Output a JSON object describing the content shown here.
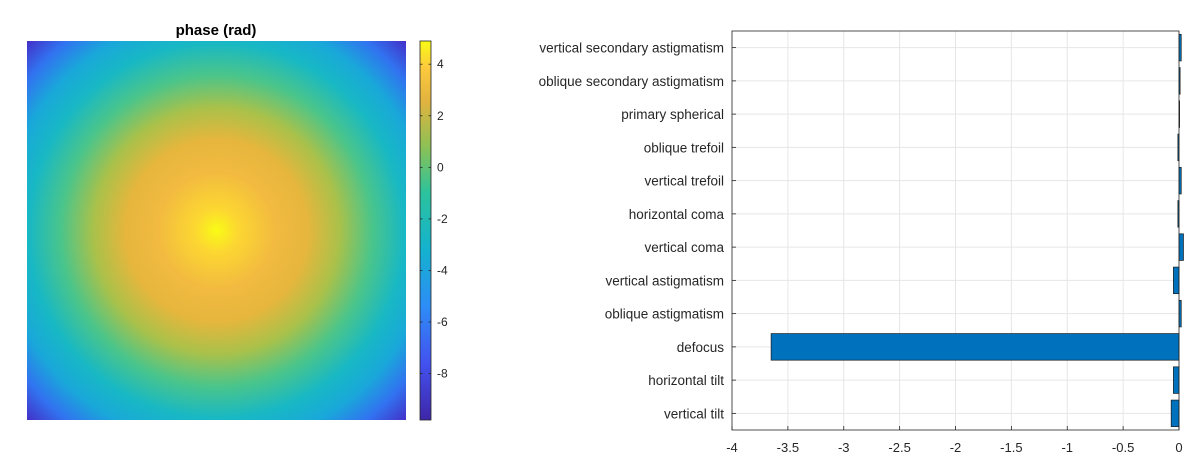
{
  "charts": [
    {
      "type": "heatmap",
      "title": "phase (rad)",
      "colorbar": {
        "range": [
          -9.8,
          4.9
        ],
        "ticks": [
          4,
          2,
          0,
          -2,
          -4,
          -6,
          -8
        ],
        "tick_labels": [
          "4",
          "2",
          "0",
          "-2",
          "-4",
          "-6",
          "-8"
        ],
        "colormap": "parula"
      },
      "field": {
        "center_value": 4.9,
        "corner_value": -9.8,
        "shape": "radially symmetric defocus phase, maximum near center"
      }
    }
  ],
  "chart_data": [
    {
      "type": "heatmap",
      "title": "phase (rad)",
      "zlim": [
        -9.8,
        4.9
      ],
      "colorbar_ticks": [
        4,
        2,
        0,
        -2,
        -4,
        -6,
        -8
      ]
    },
    {
      "type": "bar",
      "orientation": "horizontal",
      "categories": [
        "vertical secondary astigmatism",
        "oblique secondary astigmatism",
        "primary spherical",
        "oblique trefoil",
        "vertical trefoil",
        "horizontal coma",
        "vertical coma",
        "vertical astigmatism",
        "oblique astigmatism",
        "defocus",
        "horizontal tilt",
        "vertical tilt"
      ],
      "values": [
        0.02,
        0.01,
        0.0,
        -0.01,
        0.02,
        -0.01,
        0.04,
        -0.05,
        0.02,
        -3.65,
        -0.05,
        -0.07
      ],
      "xlim": [
        -4,
        0
      ],
      "xticks": [
        -4,
        -3.5,
        -3,
        -2.5,
        -2,
        -1.5,
        -1,
        -0.5,
        0
      ],
      "xtick_labels": [
        "-4",
        "-3.5",
        "-3",
        "-2.5",
        "-2",
        "-1.5",
        "-1",
        "-0.5",
        "0"
      ],
      "grid": true,
      "bar_color": "#0072BD"
    }
  ]
}
